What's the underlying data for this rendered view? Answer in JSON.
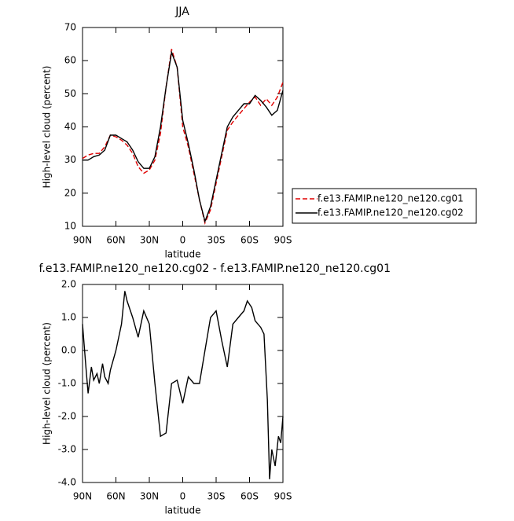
{
  "chart_data": [
    {
      "type": "line",
      "title": "JJA",
      "xlabel": "latitude",
      "ylabel": "High-level cloud (percent)",
      "xlim": [
        90,
        -90
      ],
      "xticks": [
        {
          "value": 90,
          "label": "90N"
        },
        {
          "value": 60,
          "label": "60N"
        },
        {
          "value": 30,
          "label": "30N"
        },
        0,
        {
          "value": -30,
          "label": "30S"
        },
        {
          "value": -60,
          "label": "60S"
        },
        {
          "value": -90,
          "label": "90S"
        }
      ],
      "ylim": [
        10,
        70
      ],
      "yticks": [
        10,
        20,
        30,
        40,
        50,
        60,
        70
      ],
      "x": [
        90,
        85,
        80,
        75,
        70,
        65,
        60,
        55,
        50,
        45,
        40,
        35,
        30,
        25,
        20,
        15,
        10,
        5,
        0,
        -5,
        -10,
        -15,
        -20,
        -25,
        -30,
        -35,
        -40,
        -45,
        -50,
        -55,
        -60,
        -65,
        -70,
        -75,
        -80,
        -85,
        -90
      ],
      "series": [
        {
          "name": "f.e13.FAMIP.ne120_ne120.cg01",
          "color": "#e00000",
          "dash": true,
          "values": [
            30.5,
            31.5,
            32,
            32,
            34,
            37.5,
            37,
            36,
            34.5,
            32,
            28,
            26,
            27,
            30,
            38,
            52,
            63.5,
            58,
            40,
            34,
            26,
            18,
            11,
            15,
            23,
            31,
            39,
            41.5,
            43.5,
            45.5,
            47.5,
            49,
            46.5,
            48.5,
            46.5,
            49,
            53.5
          ]
        },
        {
          "name": "f.e13.FAMIP.ne120_ne120.cg02",
          "color": "#000000",
          "dash": false,
          "values": [
            30,
            30,
            31,
            31.5,
            33,
            37.5,
            37.5,
            36.5,
            35.5,
            33,
            29.5,
            27.5,
            27.5,
            31,
            40,
            52,
            62.5,
            58,
            42,
            35,
            27,
            18,
            11.5,
            16,
            24,
            32,
            40,
            43,
            45,
            47,
            47,
            49.5,
            48,
            46,
            43.5,
            45,
            51
          ]
        }
      ]
    },
    {
      "type": "line",
      "title": "f.e13.FAMIP.ne120_ne120.cg02 - f.e13.FAMIP.ne120_ne120.cg01",
      "xlabel": "latitude",
      "ylabel": "High-level cloud (percent)",
      "xlim": [
        90,
        -90
      ],
      "xticks": [
        {
          "value": 90,
          "label": "90N"
        },
        {
          "value": 60,
          "label": "60N"
        },
        {
          "value": 30,
          "label": "30N"
        },
        0,
        {
          "value": -30,
          "label": "30S"
        },
        {
          "value": -60,
          "label": "60S"
        },
        {
          "value": -90,
          "label": "90S"
        }
      ],
      "ylim": [
        -4,
        2
      ],
      "yticks": [
        {
          "value": -4,
          "label": "-4.0"
        },
        {
          "value": -3,
          "label": "-3.0"
        },
        {
          "value": -2,
          "label": "-2.0"
        },
        {
          "value": -1,
          "label": "-1.0"
        },
        {
          "value": 0,
          "label": "0.0"
        },
        {
          "value": 1,
          "label": "1.0"
        },
        {
          "value": 2,
          "label": "2.0"
        }
      ],
      "x": [
        90,
        87,
        85,
        82,
        80,
        77,
        75,
        72,
        70,
        67,
        65,
        60,
        55,
        52,
        50,
        45,
        40,
        35,
        30,
        25,
        20,
        15,
        10,
        5,
        0,
        -5,
        -10,
        -15,
        -20,
        -25,
        -30,
        -35,
        -40,
        -45,
        -50,
        -55,
        -58,
        -62,
        -65,
        -70,
        -73,
        -76,
        -78,
        -80,
        -83,
        -86,
        -88,
        -90
      ],
      "series": [
        {
          "color": "#000000",
          "dash": false,
          "values": [
            0.8,
            -0.5,
            -1.3,
            -0.5,
            -0.9,
            -0.7,
            -1.0,
            -0.4,
            -0.8,
            -1.0,
            -0.6,
            0.0,
            0.8,
            1.8,
            1.5,
            1.0,
            0.4,
            1.2,
            0.8,
            -1.0,
            -2.6,
            -2.5,
            -1.0,
            -0.9,
            -1.6,
            -0.8,
            -1.0,
            -1.0,
            0.0,
            1.0,
            1.2,
            0.3,
            -0.5,
            0.8,
            1.0,
            1.2,
            1.5,
            1.3,
            0.9,
            0.7,
            0.5,
            -1.5,
            -3.9,
            -3.0,
            -3.5,
            -2.6,
            -2.8,
            -2.0
          ]
        }
      ]
    }
  ]
}
